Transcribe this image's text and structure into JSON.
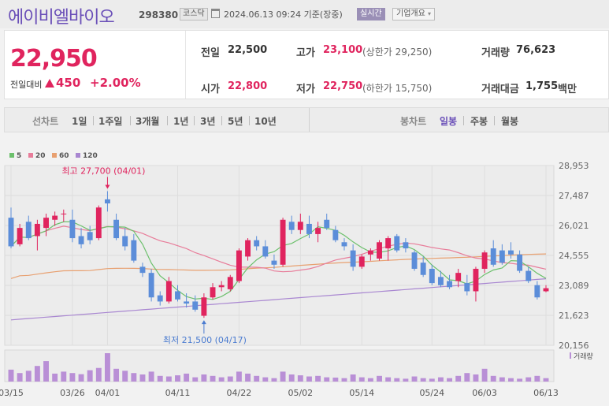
{
  "header": {
    "stock_name": "에이비엘바이오",
    "stock_code": "298380",
    "market_badge": "코스닥",
    "datetime": "2024.06.13 09:24 기준(장중)",
    "realtime_badge": "실시간",
    "overview_label": "기업개요"
  },
  "quote": {
    "price": "22,950",
    "change_label": "전일대비",
    "change_value": "450",
    "change_pct": "+2.00%",
    "prev_close_label": "전일",
    "prev_close": "22,500",
    "open_label": "시가",
    "open": "22,800",
    "high_label": "고가",
    "high": "23,100",
    "upper_limit": "(상한가 29,250)",
    "low_label": "저가",
    "low": "22,750",
    "lower_limit": "(하한가 15,750)",
    "volume_label": "거래량",
    "volume": "76,623",
    "amount_label": "거래대금",
    "amount": "1,755",
    "amount_unit": "백만"
  },
  "period_bar": {
    "line_label": "선차트",
    "line_periods": [
      "1일",
      "1주일",
      "3개월",
      "1년",
      "3년",
      "5년",
      "10년"
    ],
    "candle_label": "봉차트",
    "candle_periods": [
      "일봉",
      "주봉",
      "월봉"
    ]
  },
  "colors": {
    "up": "#e0245e",
    "down": "#5b8dd9",
    "ma5": "#6cc06c",
    "ma20": "#e87d9a",
    "ma60": "#e8a070",
    "ma120": "#a987d1",
    "volume": "#b98fd6"
  },
  "chart_data": {
    "type": "candlestick",
    "legend": [
      {
        "name": "5",
        "color": "#6cc06c"
      },
      {
        "name": "20",
        "color": "#e87d9a"
      },
      {
        "name": "60",
        "color": "#e8a070"
      },
      {
        "name": "120",
        "color": "#a987d1"
      }
    ],
    "y_ticks": [
      "28,953",
      "27,487",
      "26,021",
      "24,555",
      "23,089",
      "21,623",
      "20,156"
    ],
    "ylim": [
      20156,
      28953
    ],
    "x_labels": [
      {
        "label": "03/15",
        "index": 0
      },
      {
        "label": "03/26",
        "index": 7
      },
      {
        "label": "04/01",
        "index": 11
      },
      {
        "label": "04/11",
        "index": 19
      },
      {
        "label": "04/22",
        "index": 26
      },
      {
        "label": "05/02",
        "index": 33
      },
      {
        "label": "05/14",
        "index": 40
      },
      {
        "label": "05/24",
        "index": 48
      },
      {
        "label": "06/03",
        "index": 54
      },
      {
        "label": "06/13",
        "index": 61
      }
    ],
    "annotations": {
      "high_label": "최고 27,700 (04/01)",
      "high_value": 27700,
      "high_index": 11,
      "low_label": "최저 21,500 (04/17)",
      "low_value": 21500,
      "low_index": 22
    },
    "volume_label": "거래량",
    "candles": [
      {
        "o": 26400,
        "h": 26900,
        "l": 24900,
        "c": 25000
      },
      {
        "o": 25100,
        "h": 26100,
        "l": 25000,
        "c": 25900
      },
      {
        "o": 26200,
        "h": 26500,
        "l": 25300,
        "c": 25400
      },
      {
        "o": 25500,
        "h": 26300,
        "l": 24800,
        "c": 26100
      },
      {
        "o": 25900,
        "h": 26600,
        "l": 25500,
        "c": 26400
      },
      {
        "o": 26300,
        "h": 26700,
        "l": 26000,
        "c": 26500
      },
      {
        "o": 26600,
        "h": 26800,
        "l": 26200,
        "c": 26600
      },
      {
        "o": 26300,
        "h": 26800,
        "l": 25200,
        "c": 25400
      },
      {
        "o": 25500,
        "h": 25900,
        "l": 24900,
        "c": 25100
      },
      {
        "o": 25700,
        "h": 26000,
        "l": 25100,
        "c": 25300
      },
      {
        "o": 25400,
        "h": 27000,
        "l": 25300,
        "c": 26900
      },
      {
        "o": 27300,
        "h": 27700,
        "l": 26700,
        "c": 27100
      },
      {
        "o": 26300,
        "h": 26600,
        "l": 25300,
        "c": 25400
      },
      {
        "o": 25500,
        "h": 25900,
        "l": 24800,
        "c": 25000
      },
      {
        "o": 25300,
        "h": 25600,
        "l": 24200,
        "c": 24300
      },
      {
        "o": 24000,
        "h": 24200,
        "l": 23500,
        "c": 23700
      },
      {
        "o": 23700,
        "h": 23900,
        "l": 22300,
        "c": 22500
      },
      {
        "o": 22600,
        "h": 22800,
        "l": 22100,
        "c": 22300
      },
      {
        "o": 22300,
        "h": 23500,
        "l": 22200,
        "c": 23300
      },
      {
        "o": 22800,
        "h": 23100,
        "l": 22300,
        "c": 22400
      },
      {
        "o": 22300,
        "h": 22700,
        "l": 22000,
        "c": 22200
      },
      {
        "o": 22300,
        "h": 22600,
        "l": 21800,
        "c": 21900
      },
      {
        "o": 21600,
        "h": 22700,
        "l": 21500,
        "c": 22500
      },
      {
        "o": 22500,
        "h": 23200,
        "l": 22400,
        "c": 23000
      },
      {
        "o": 23000,
        "h": 23300,
        "l": 22800,
        "c": 23100
      },
      {
        "o": 22900,
        "h": 23600,
        "l": 22800,
        "c": 23500
      },
      {
        "o": 23300,
        "h": 24900,
        "l": 23200,
        "c": 24800
      },
      {
        "o": 24500,
        "h": 25400,
        "l": 24300,
        "c": 25300
      },
      {
        "o": 25300,
        "h": 25500,
        "l": 24800,
        "c": 25000
      },
      {
        "o": 25000,
        "h": 25300,
        "l": 24400,
        "c": 24500
      },
      {
        "o": 24300,
        "h": 24600,
        "l": 23900,
        "c": 24100
      },
      {
        "o": 24100,
        "h": 26400,
        "l": 24000,
        "c": 26300
      },
      {
        "o": 26200,
        "h": 26500,
        "l": 25600,
        "c": 25800
      },
      {
        "o": 25800,
        "h": 26600,
        "l": 25600,
        "c": 26200
      },
      {
        "o": 26100,
        "h": 26500,
        "l": 25400,
        "c": 25600
      },
      {
        "o": 25600,
        "h": 26200,
        "l": 25200,
        "c": 25900
      },
      {
        "o": 26300,
        "h": 26600,
        "l": 25800,
        "c": 25900
      },
      {
        "o": 25800,
        "h": 26000,
        "l": 25200,
        "c": 25300
      },
      {
        "o": 25200,
        "h": 25400,
        "l": 24800,
        "c": 25000
      },
      {
        "o": 24800,
        "h": 25100,
        "l": 23800,
        "c": 24000
      },
      {
        "o": 24000,
        "h": 24600,
        "l": 23900,
        "c": 24500
      },
      {
        "o": 24600,
        "h": 24900,
        "l": 24300,
        "c": 24800
      },
      {
        "o": 24400,
        "h": 25300,
        "l": 24300,
        "c": 25200
      },
      {
        "o": 24900,
        "h": 25500,
        "l": 24300,
        "c": 25400
      },
      {
        "o": 25500,
        "h": 25600,
        "l": 24700,
        "c": 24800
      },
      {
        "o": 25200,
        "h": 25400,
        "l": 24700,
        "c": 24900
      },
      {
        "o": 24700,
        "h": 24800,
        "l": 23800,
        "c": 23900
      },
      {
        "o": 24200,
        "h": 24500,
        "l": 23500,
        "c": 23600
      },
      {
        "o": 23900,
        "h": 24100,
        "l": 23100,
        "c": 23200
      },
      {
        "o": 23500,
        "h": 23800,
        "l": 23000,
        "c": 23100
      },
      {
        "o": 23300,
        "h": 23600,
        "l": 22900,
        "c": 23000
      },
      {
        "o": 23300,
        "h": 23900,
        "l": 23000,
        "c": 23700
      },
      {
        "o": 23200,
        "h": 23600,
        "l": 22600,
        "c": 22800
      },
      {
        "o": 22800,
        "h": 24000,
        "l": 22300,
        "c": 23900
      },
      {
        "o": 23900,
        "h": 24800,
        "l": 23700,
        "c": 24700
      },
      {
        "o": 24900,
        "h": 25300,
        "l": 24000,
        "c": 24100
      },
      {
        "o": 24800,
        "h": 25100,
        "l": 24100,
        "c": 24200
      },
      {
        "o": 24800,
        "h": 25200,
        "l": 24400,
        "c": 24600
      },
      {
        "o": 24600,
        "h": 24800,
        "l": 23700,
        "c": 23800
      },
      {
        "o": 23800,
        "h": 24000,
        "l": 23200,
        "c": 23300
      },
      {
        "o": 23100,
        "h": 23300,
        "l": 22400,
        "c": 22500
      },
      {
        "o": 22800,
        "h": 23100,
        "l": 22750,
        "c": 22950
      }
    ],
    "volumes": [
      42,
      30,
      38,
      55,
      72,
      28,
      35,
      30,
      26,
      40,
      48,
      100,
      45,
      38,
      30,
      25,
      35,
      20,
      18,
      22,
      28,
      15,
      25,
      20,
      15,
      18,
      35,
      28,
      20,
      15,
      12,
      35,
      25,
      22,
      18,
      20,
      15,
      14,
      12,
      25,
      15,
      12,
      20,
      15,
      12,
      10,
      18,
      12,
      10,
      15,
      12,
      20,
      30,
      25,
      45,
      20,
      15,
      12,
      10,
      15,
      20,
      12
    ]
  }
}
